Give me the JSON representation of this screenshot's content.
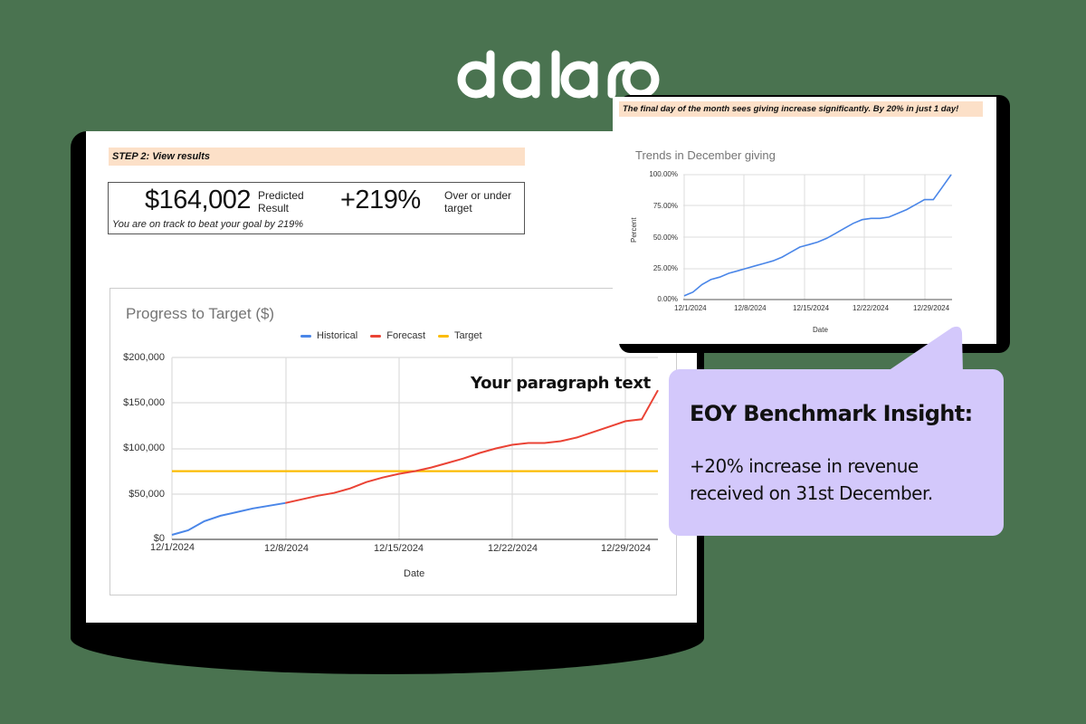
{
  "brand": {
    "logo_text": "dataro"
  },
  "colors": {
    "background": "#4a7350",
    "banner": "#fce0c8",
    "callout": "#d3c8fb",
    "historical": "#4a86e8",
    "forecast": "#ea4335",
    "target": "#fbbc04",
    "trend": "#4a86e8"
  },
  "main_card": {
    "step_banner": "STEP 2: View results",
    "predicted_value": "$164,002",
    "predicted_label_1": "Predicted",
    "predicted_label_2": "Result",
    "over_under_value": "+219%",
    "over_under_label_1": "Over or under",
    "over_under_label_2": "target",
    "track_message": "You are on track to beat your goal by 219%",
    "annotation": "Your paragraph text"
  },
  "secondary_card": {
    "banner": "The final day of the month sees giving increase significantly. By 20% in just 1 day!"
  },
  "callout": {
    "title": "EOY Benchmark Insight:",
    "body_line_1": "+20% increase in revenue",
    "body_line_2": "received on 31st December."
  },
  "chart_data": [
    {
      "type": "line",
      "title": "Progress to Target ($)",
      "xlabel": "Date",
      "ylabel": "",
      "ylim": [
        0,
        200000
      ],
      "grid": true,
      "legend_position": "top",
      "legend": [
        "Historical",
        "Forecast",
        "Target"
      ],
      "x_tick_labels": [
        "12/1/2024",
        "12/8/2024",
        "12/15/2024",
        "12/22/2024",
        "12/29/2024"
      ],
      "y_tick_labels": [
        "$0",
        "$50,000",
        "$100,000",
        "$150,000",
        "$200,000"
      ],
      "x": [
        "12/1",
        "12/2",
        "12/3",
        "12/4",
        "12/5",
        "12/6",
        "12/7",
        "12/8",
        "12/9",
        "12/10",
        "12/11",
        "12/12",
        "12/13",
        "12/14",
        "12/15",
        "12/16",
        "12/17",
        "12/18",
        "12/19",
        "12/20",
        "12/21",
        "12/22",
        "12/23",
        "12/24",
        "12/25",
        "12/26",
        "12/27",
        "12/28",
        "12/29",
        "12/30",
        "12/31"
      ],
      "series": [
        {
          "name": "Historical",
          "color": "#4a86e8",
          "values": [
            5000,
            10000,
            20000,
            26000,
            30000,
            34000,
            37000,
            40000,
            null,
            null,
            null,
            null,
            null,
            null,
            null,
            null,
            null,
            null,
            null,
            null,
            null,
            null,
            null,
            null,
            null,
            null,
            null,
            null,
            null,
            null,
            null
          ]
        },
        {
          "name": "Forecast",
          "color": "#ea4335",
          "values": [
            null,
            null,
            null,
            null,
            null,
            null,
            null,
            40000,
            44000,
            48000,
            51000,
            56000,
            63000,
            68000,
            72000,
            75000,
            79000,
            84000,
            89000,
            95000,
            100000,
            104000,
            106000,
            106000,
            108000,
            112000,
            118000,
            124000,
            130000,
            132000,
            164002
          ]
        },
        {
          "name": "Target",
          "color": "#fbbc04",
          "values": [
            75000,
            75000,
            75000,
            75000,
            75000,
            75000,
            75000,
            75000,
            75000,
            75000,
            75000,
            75000,
            75000,
            75000,
            75000,
            75000,
            75000,
            75000,
            75000,
            75000,
            75000,
            75000,
            75000,
            75000,
            75000,
            75000,
            75000,
            75000,
            75000,
            75000,
            75000
          ]
        }
      ],
      "annotations": [
        "Your paragraph text"
      ]
    },
    {
      "type": "line",
      "title": "Trends in December giving",
      "xlabel": "Date",
      "ylabel": "Percent",
      "ylim": [
        0,
        100
      ],
      "grid": true,
      "x_tick_labels": [
        "12/1/2024",
        "12/8/2024",
        "12/15/2024",
        "12/22/2024",
        "12/29/2024"
      ],
      "y_tick_labels": [
        "0.00%",
        "25.00%",
        "50.00%",
        "75.00%",
        "100.00%"
      ],
      "x": [
        "12/1",
        "12/2",
        "12/3",
        "12/4",
        "12/5",
        "12/6",
        "12/7",
        "12/8",
        "12/9",
        "12/10",
        "12/11",
        "12/12",
        "12/13",
        "12/14",
        "12/15",
        "12/16",
        "12/17",
        "12/18",
        "12/19",
        "12/20",
        "12/21",
        "12/22",
        "12/23",
        "12/24",
        "12/25",
        "12/26",
        "12/27",
        "12/28",
        "12/29",
        "12/30",
        "12/31"
      ],
      "series": [
        {
          "name": "Percent",
          "color": "#4a86e8",
          "values": [
            3,
            6,
            12,
            16,
            18,
            21,
            23,
            25,
            27,
            29,
            31,
            34,
            38,
            42,
            44,
            46,
            49,
            53,
            57,
            61,
            64,
            65,
            65,
            66,
            69,
            72,
            76,
            80,
            80,
            90,
            100
          ]
        }
      ]
    }
  ]
}
